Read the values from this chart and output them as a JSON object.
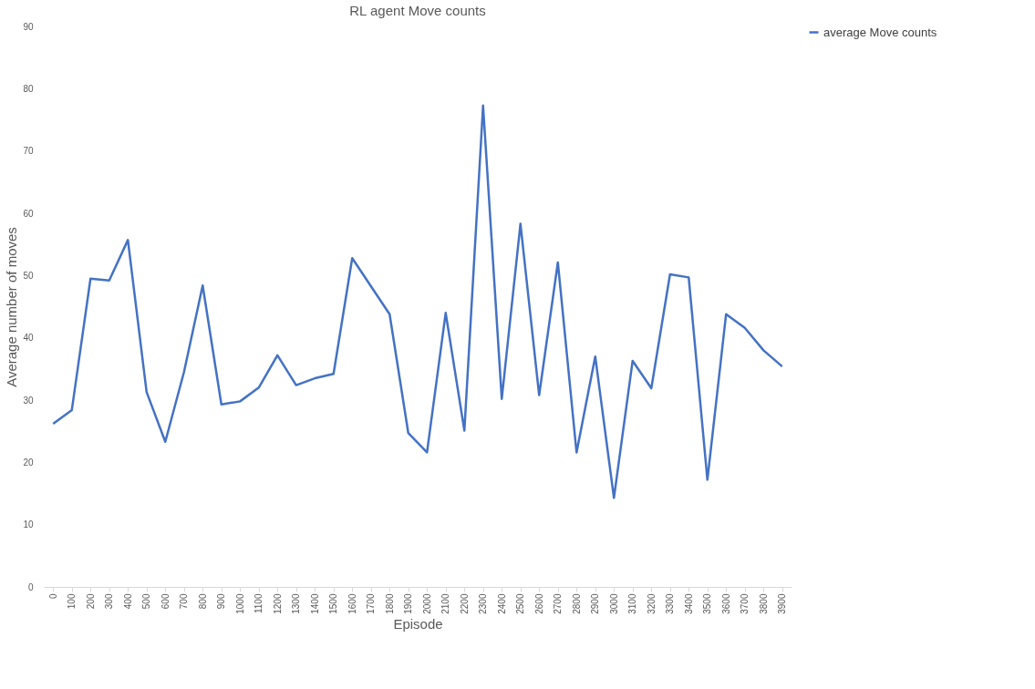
{
  "chart_data": {
    "type": "line",
    "title": "RL agent Move counts",
    "xlabel": "Episode",
    "ylabel": "Average number of moves",
    "categories": [
      "0",
      "100",
      "200",
      "300",
      "400",
      "500",
      "600",
      "700",
      "800",
      "900",
      "1000",
      "1100",
      "1200",
      "1300",
      "1400",
      "1500",
      "1600",
      "1700",
      "1800",
      "1900",
      "2000",
      "2100",
      "2200",
      "2300",
      "2400",
      "2500",
      "2600",
      "2700",
      "2800",
      "2900",
      "3000",
      "3100",
      "3200",
      "3300",
      "3400",
      "3500",
      "3600",
      "3700",
      "3800",
      "3900"
    ],
    "series": [
      {
        "name": "average Move counts",
        "color": "#4472c4",
        "values": [
          26.2,
          28.4,
          49.5,
          49.2,
          55.7,
          31.3,
          23.3,
          34.5,
          48.4,
          29.3,
          29.8,
          32.0,
          37.2,
          32.4,
          33.5,
          34.2,
          52.8,
          48.3,
          43.8,
          24.7,
          21.6,
          44.0,
          25.1,
          77.3,
          30.2,
          58.3,
          30.8,
          52.1,
          21.6,
          37.0,
          14.3,
          36.3,
          31.9,
          50.2,
          49.7,
          17.2,
          43.8,
          41.6,
          38.0,
          35.4
        ]
      }
    ],
    "ylim": [
      0,
      90
    ],
    "yticks": [
      0,
      10,
      20,
      30,
      40,
      50,
      60,
      70,
      80,
      90
    ],
    "grid": false,
    "legend": "right",
    "marker": "none",
    "line_style": "solid"
  }
}
